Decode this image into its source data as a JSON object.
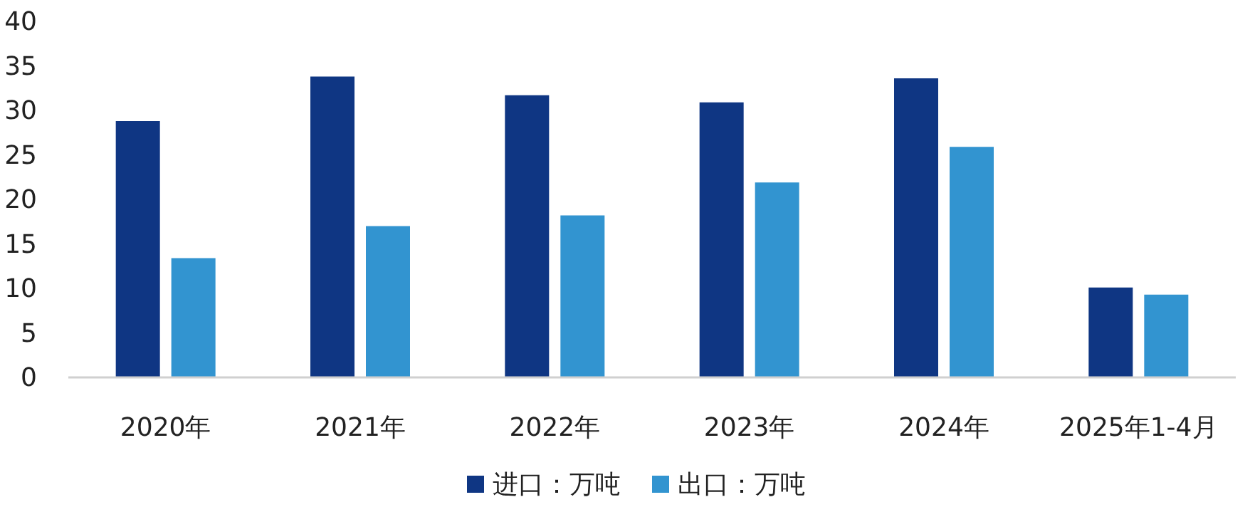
{
  "chart_data": {
    "type": "bar",
    "categories": [
      "2020年",
      "2021年",
      "2022年",
      "2023年",
      "2024年",
      "2025年1-4月"
    ],
    "series": [
      {
        "name": "进口：万吨",
        "color": "#0f3683",
        "values": [
          28.8,
          33.8,
          31.7,
          30.9,
          33.6,
          10.1
        ]
      },
      {
        "name": "出口：万吨",
        "color": "#3294d0",
        "values": [
          13.4,
          17.0,
          18.2,
          21.9,
          25.9,
          9.3
        ]
      }
    ],
    "ylim": [
      0,
      40
    ],
    "yticks": [
      0,
      5,
      10,
      15,
      20,
      25,
      30,
      35,
      40
    ],
    "grid": false,
    "legend": "bottom"
  }
}
